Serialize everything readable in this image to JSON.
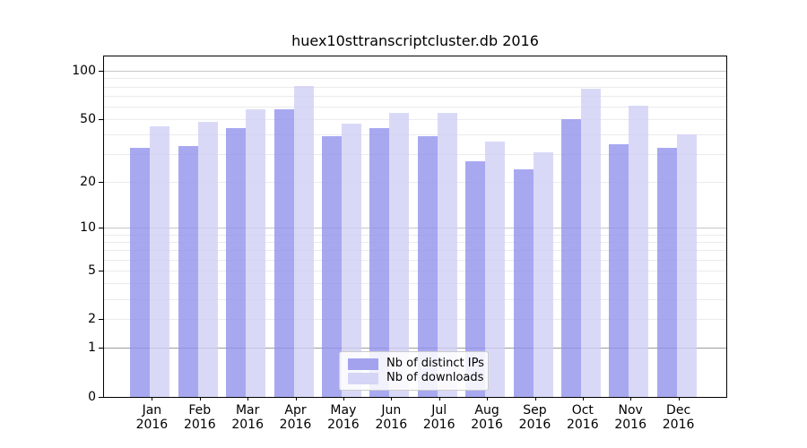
{
  "title": "huex10sttranscriptcluster.db 2016",
  "chart_data": {
    "type": "bar",
    "title": "huex10sttranscriptcluster.db 2016",
    "categories": [
      "Jan",
      "Feb",
      "Mar",
      "Apr",
      "May",
      "Jun",
      "Jul",
      "Aug",
      "Sep",
      "Oct",
      "Nov",
      "Dec"
    ],
    "year": "2016",
    "series": [
      {
        "key": "distinct-ips",
        "name": "Nb of distinct IPs",
        "color": "rgba(146,146,238,0.8)",
        "swatch": "#a2a2ef",
        "values": [
          33,
          34,
          44,
          58,
          39,
          44,
          39,
          27,
          24,
          50,
          35,
          33
        ]
      },
      {
        "key": "downloads",
        "name": "Nb of downloads",
        "color": "rgba(208,208,245,0.8)",
        "swatch": "#d5d5f6",
        "values": [
          45,
          48,
          58,
          81,
          47,
          55,
          55,
          36,
          31,
          78,
          61,
          40
        ]
      }
    ],
    "scale": "log1p",
    "ylim": [
      0,
      123
    ],
    "yticks": [
      0,
      1,
      2,
      5,
      10,
      20,
      50,
      100
    ],
    "grid": {
      "minor_values": [
        2,
        3,
        4,
        5,
        6,
        7,
        8,
        9,
        20,
        30,
        40,
        50,
        60,
        70,
        80,
        90
      ],
      "minor_color": "#ebebeb",
      "major_values": [
        10,
        100
      ],
      "major_color": "#c6c6c6",
      "emph_value": 1,
      "emph_color": "#9c9c9c"
    },
    "legend_position": "lower center",
    "grid_on": true
  }
}
